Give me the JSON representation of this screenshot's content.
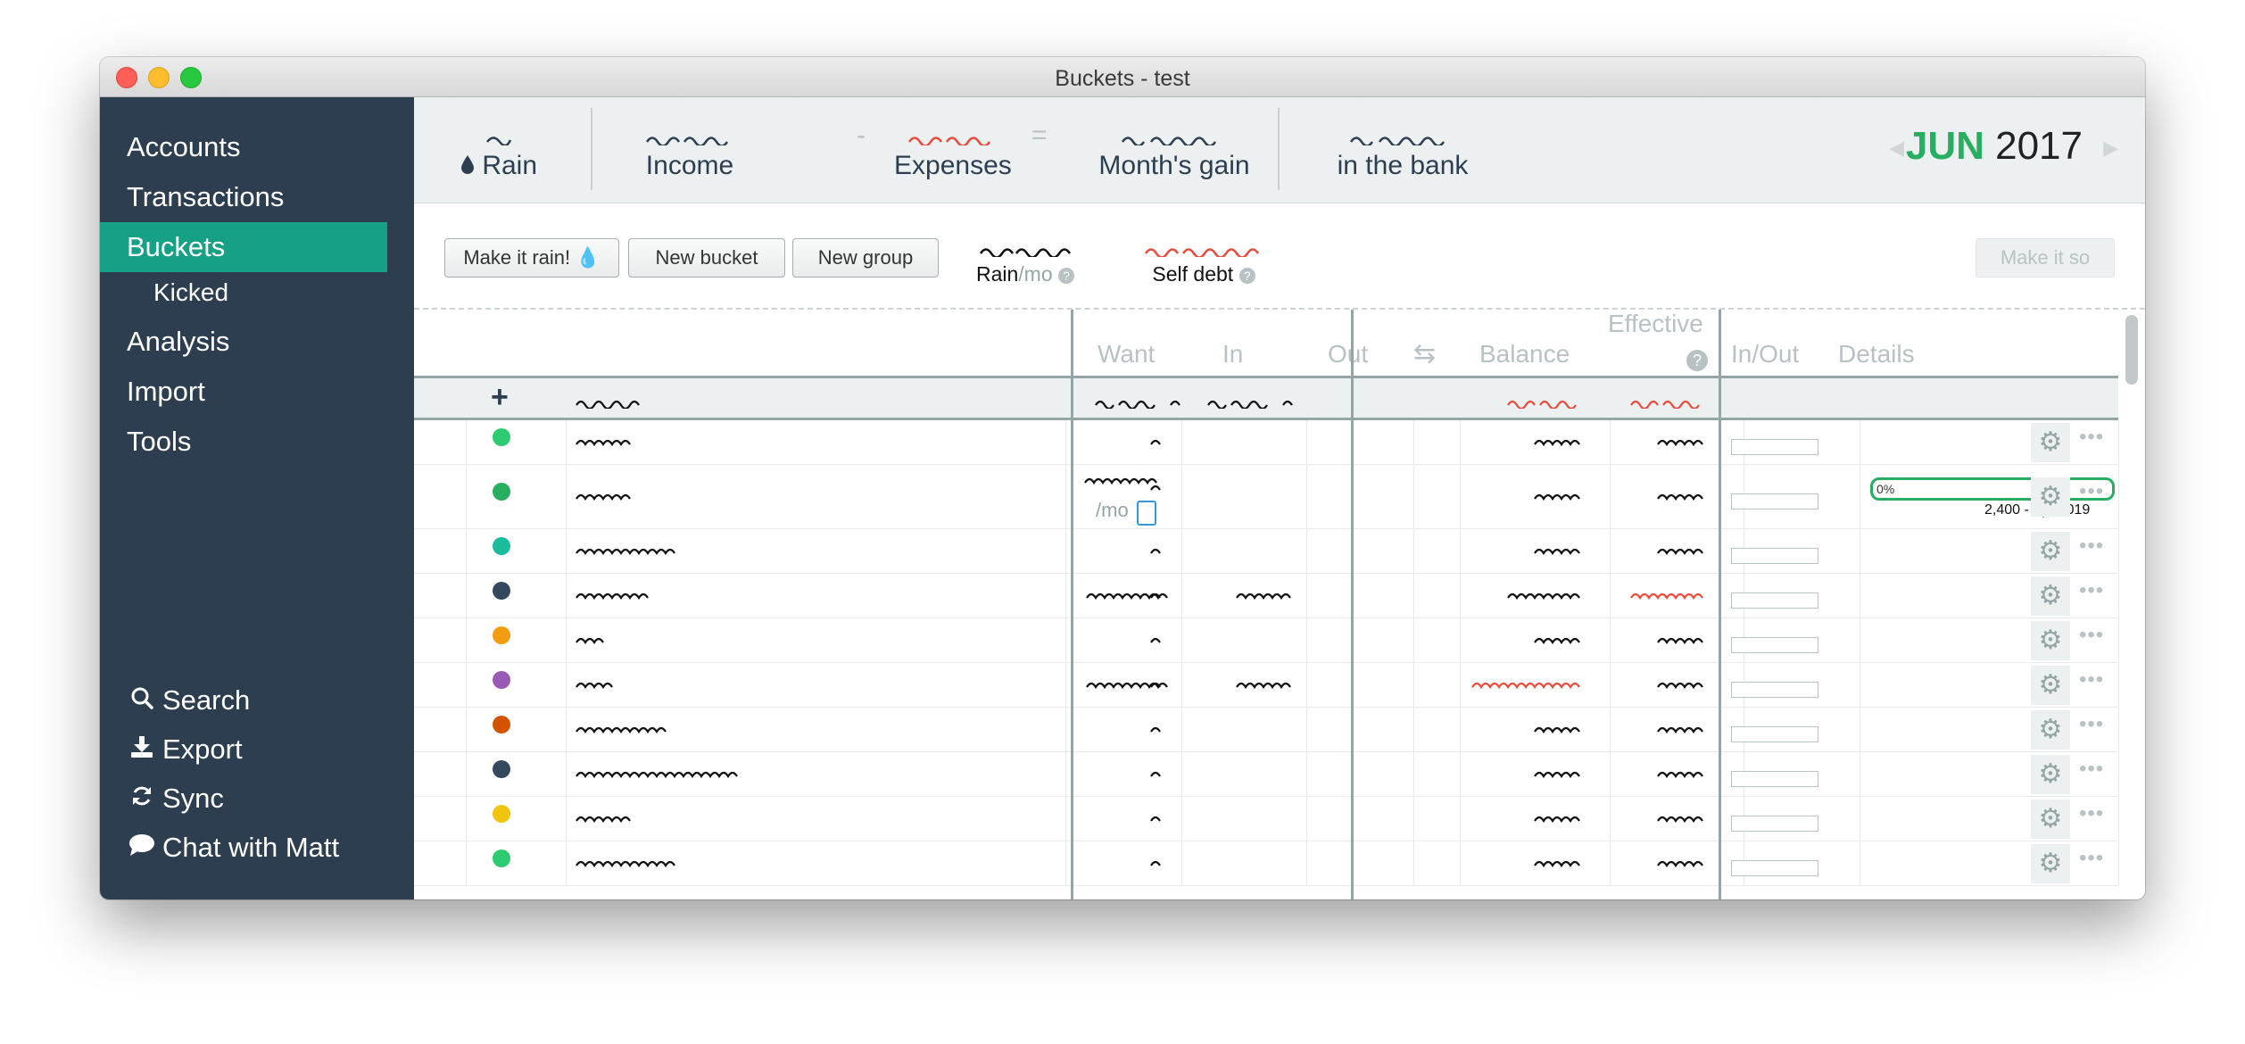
{
  "window": {
    "title": "Buckets - test"
  },
  "sidebar": {
    "top_items": [
      {
        "label": "Accounts"
      },
      {
        "label": "Transactions"
      },
      {
        "label": "Buckets"
      },
      {
        "label": "Kicked"
      },
      {
        "label": "Analysis"
      },
      {
        "label": "Import"
      },
      {
        "label": "Tools"
      }
    ],
    "bottom_items": [
      {
        "label": "Search",
        "icon": "search-icon"
      },
      {
        "label": "Export",
        "icon": "download-icon"
      },
      {
        "label": "Sync",
        "icon": "sync-icon"
      },
      {
        "label": "Chat with Matt",
        "icon": "chat-icon"
      }
    ]
  },
  "summary": {
    "rain_label": "Rain",
    "income_label": "Income",
    "minus": "-",
    "expenses_label": "Expenses",
    "equals": "=",
    "gain_label": "Month's gain",
    "bank_label": "in the bank",
    "month": "JUN",
    "year": "2017"
  },
  "toolbar": {
    "make_it_rain": "Make it rain! 💧",
    "new_bucket": "New bucket",
    "new_group": "New group",
    "rain_per_mo_label": "Rain",
    "rain_per_mo_suffix": "/mo",
    "self_debt_label": "Self debt",
    "make_it_so": "Make it so"
  },
  "table": {
    "headers": {
      "want": "Want",
      "in": "In",
      "out": "Out",
      "balance": "Balance",
      "effective": "Effective",
      "inout": "In/Out",
      "details": "Details",
      "add": "+"
    },
    "per_mo": "/mo",
    "detail_percent": "0%",
    "detail_note": "2,400 - Apr 2019",
    "detail_progress": 0,
    "rows": [
      {
        "color": "#2ecc71"
      },
      {
        "color": "#27ae60"
      },
      {
        "color": "#1abc9c"
      },
      {
        "color": "#34495e"
      },
      {
        "color": "#f39c12"
      },
      {
        "color": "#9b59b6"
      },
      {
        "color": "#d35400"
      },
      {
        "color": "#34495e"
      },
      {
        "color": "#f1c40f"
      },
      {
        "color": "#2ecc71"
      }
    ]
  },
  "colors": {
    "sidebar": "#2c3e50",
    "active": "#16a085",
    "month_green": "#27ae60",
    "negative_red": "#e74c3c"
  }
}
